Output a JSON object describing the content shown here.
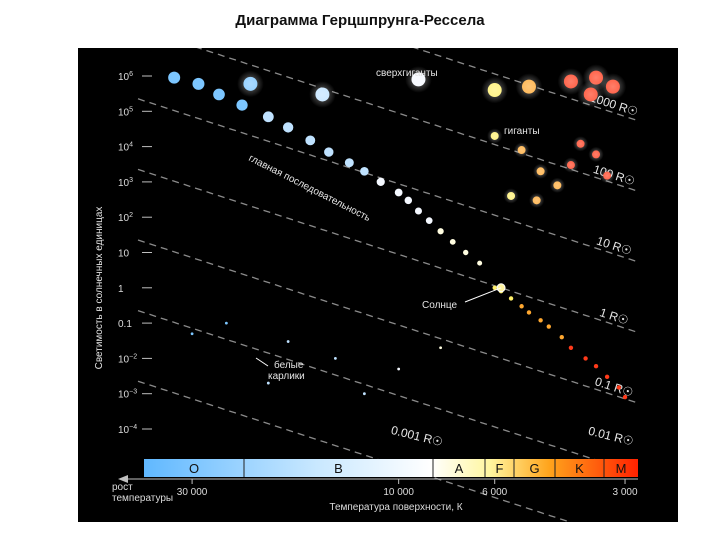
{
  "title": "Диаграмма Герцшпрунга-Рессела",
  "chart_data": {
    "type": "scatter",
    "ylabel": "Светимость в солнечных единицах",
    "xlabel": "Температура поверхности, К",
    "x_arrow_label": "рост температуры",
    "y_scale": "log",
    "y_ticks": [
      {
        "value": 1000000,
        "base": "10",
        "exp": "6"
      },
      {
        "value": 100000,
        "base": "10",
        "exp": "5"
      },
      {
        "value": 10000,
        "base": "10",
        "exp": "4"
      },
      {
        "value": 1000,
        "base": "10",
        "exp": "3"
      },
      {
        "value": 100,
        "base": "10",
        "exp": "2"
      },
      {
        "value": 10,
        "base": "10",
        "exp": ""
      },
      {
        "value": 1,
        "base": "1",
        "exp": ""
      },
      {
        "value": 0.1,
        "base": "0.1",
        "exp": ""
      },
      {
        "value": 0.01,
        "base": "10",
        "exp": "−2"
      },
      {
        "value": 0.001,
        "base": "10",
        "exp": "−3"
      },
      {
        "value": 0.0001,
        "base": "10",
        "exp": "−4"
      }
    ],
    "x_ticks": [
      {
        "value": 30000,
        "label": "30 000"
      },
      {
        "value": 10000,
        "label": "10 000"
      },
      {
        "value": 6000,
        "label": "6 000"
      },
      {
        "value": 3000,
        "label": "3 000"
      }
    ],
    "spectral_classes": [
      {
        "label": "O",
        "color": "#7cc6ff"
      },
      {
        "label": "B",
        "color": "#c9e8ff"
      },
      {
        "label": "A",
        "color": "#ffffff"
      },
      {
        "label": "F",
        "color": "#fffcc0"
      },
      {
        "label": "G",
        "color": "#fff25a"
      },
      {
        "label": "K",
        "color": "#ff9d1a"
      },
      {
        "label": "M",
        "color": "#ff2a00"
      }
    ],
    "radius_lines": [
      {
        "label": "1000 R☉",
        "radius": 1000
      },
      {
        "label": "100 R☉",
        "radius": 100
      },
      {
        "label": "10 R☉",
        "radius": 10
      },
      {
        "label": "1 R☉",
        "radius": 1
      },
      {
        "label": "0.1 R☉",
        "radius": 0.1
      },
      {
        "label": "0.01 R☉",
        "radius": 0.01
      },
      {
        "label": "0.001 R☉",
        "radius": 0.001
      }
    ],
    "annotations": {
      "supergiants": "сверхгиганты",
      "giants": "гиганты",
      "main_sequence": "главная последовательность",
      "sun": "Солнце",
      "white_dwarfs_1": "белые",
      "white_dwarfs_2": "карлики"
    },
    "groups": [
      {
        "name": "главная последовательность",
        "points": [
          [
            33000,
            900000
          ],
          [
            29000,
            600000
          ],
          [
            26000,
            300000
          ],
          [
            23000,
            150000
          ],
          [
            20000,
            70000
          ],
          [
            18000,
            35000
          ],
          [
            16000,
            15000
          ],
          [
            14500,
            7000
          ],
          [
            13000,
            3500
          ],
          [
            12000,
            2000
          ],
          [
            11000,
            1000
          ],
          [
            10000,
            500
          ],
          [
            9500,
            300
          ],
          [
            9000,
            150
          ],
          [
            8500,
            80
          ],
          [
            8000,
            40
          ],
          [
            7500,
            20
          ],
          [
            7000,
            10
          ],
          [
            6500,
            5
          ],
          [
            6000,
            1
          ],
          [
            5800,
            0.8
          ],
          [
            5500,
            0.5
          ],
          [
            5200,
            0.3
          ],
          [
            5000,
            0.2
          ],
          [
            4700,
            0.12
          ],
          [
            4500,
            0.08
          ],
          [
            4200,
            0.04
          ],
          [
            4000,
            0.02
          ],
          [
            3700,
            0.01
          ],
          [
            3500,
            0.006
          ],
          [
            3300,
            0.003
          ],
          [
            3100,
            0.0015
          ],
          [
            3000,
            0.0008
          ]
        ]
      },
      {
        "name": "сверхгиганты",
        "points": [
          [
            22000,
            600000
          ],
          [
            15000,
            300000
          ],
          [
            9000,
            800000
          ],
          [
            6000,
            400000
          ],
          [
            5000,
            500000
          ],
          [
            4000,
            700000
          ],
          [
            3500,
            900000
          ],
          [
            3200,
            500000
          ],
          [
            3600,
            300000
          ]
        ]
      },
      {
        "name": "гиганты",
        "points": [
          [
            6000,
            20000
          ],
          [
            5200,
            8000
          ],
          [
            4700,
            2000
          ],
          [
            4300,
            800
          ],
          [
            4000,
            3000
          ],
          [
            3800,
            12000
          ],
          [
            3500,
            6000
          ],
          [
            5500,
            400
          ],
          [
            4800,
            300
          ],
          [
            3300,
            1500
          ]
        ]
      },
      {
        "name": "белые карлики",
        "points": [
          [
            25000,
            0.1
          ],
          [
            18000,
            0.03
          ],
          [
            14000,
            0.01
          ],
          [
            10000,
            0.005
          ],
          [
            30000,
            0.05
          ],
          [
            12000,
            0.001
          ],
          [
            8000,
            0.02
          ],
          [
            20000,
            0.002
          ]
        ]
      }
    ],
    "sun_point": [
      5800,
      1
    ]
  }
}
